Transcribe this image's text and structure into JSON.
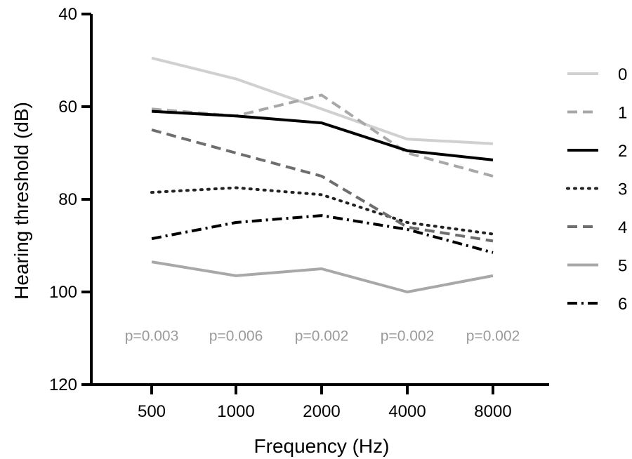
{
  "chart_data": {
    "type": "line",
    "xlabel": "Frequency (Hz)",
    "ylabel": "Hearing threshold (dB)",
    "categories": [
      "500",
      "1000",
      "2000",
      "4000",
      "8000"
    ],
    "ylim": [
      40,
      120
    ],
    "y_inverted": true,
    "y_ticks": [
      "40",
      "60",
      "80",
      "100",
      "120"
    ],
    "grid": false,
    "legend_position": "right",
    "series": [
      {
        "name": "0",
        "values": [
          49.5,
          54,
          60.5,
          67,
          68
        ],
        "color": "#d0d0d0",
        "dash": "solid"
      },
      {
        "name": "1",
        "values": [
          60.5,
          62,
          57.5,
          70,
          75
        ],
        "color": "#a8a8a8",
        "dash": "dashed"
      },
      {
        "name": "2",
        "values": [
          61,
          62,
          63.5,
          69.5,
          71.5
        ],
        "color": "#000000",
        "dash": "solid"
      },
      {
        "name": "3",
        "values": [
          78.5,
          77.5,
          79,
          85,
          87.5
        ],
        "color": "#222222",
        "dash": "dotted"
      },
      {
        "name": "4",
        "values": [
          65,
          70,
          75,
          86,
          89
        ],
        "color": "#6e6e6e",
        "dash": "dashed"
      },
      {
        "name": "5",
        "values": [
          93.5,
          96.5,
          95,
          100,
          96.5
        ],
        "color": "#a8a8a8",
        "dash": "solid"
      },
      {
        "name": "6",
        "values": [
          88.5,
          85,
          83.5,
          86.5,
          91.5
        ],
        "color": "#000000",
        "dash": "dash-dot"
      }
    ],
    "annotations": [
      "p=0.003",
      "p=0.006",
      "p=0.002",
      "p=0.002",
      "p=0.002"
    ],
    "annotation_color": "#9a9a9a",
    "annotation_y": 109.5
  }
}
